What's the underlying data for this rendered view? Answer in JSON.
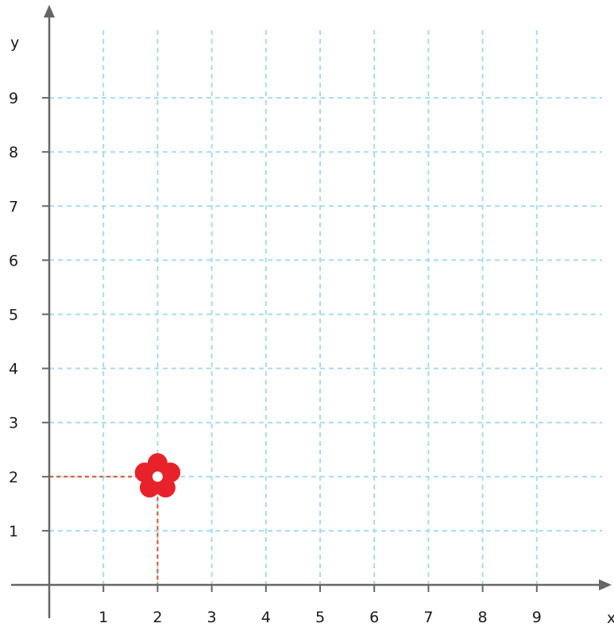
{
  "chart_data": {
    "type": "scatter",
    "xlabel": "x",
    "ylabel": "y",
    "xlim": [
      0,
      10
    ],
    "ylim": [
      0,
      10
    ],
    "x_ticks": [
      "1",
      "2",
      "3",
      "4",
      "5",
      "6",
      "7",
      "8",
      "9"
    ],
    "y_ticks": [
      "1",
      "2",
      "3",
      "4",
      "5",
      "6",
      "7",
      "8",
      "9"
    ],
    "grid": true,
    "points": [
      {
        "x": 2,
        "y": 2,
        "marker": "flower-icon",
        "color": "#e8222a"
      }
    ],
    "guide_color": "#e0522a",
    "grid_color": "#a8dced",
    "axis_color": "#666666"
  }
}
